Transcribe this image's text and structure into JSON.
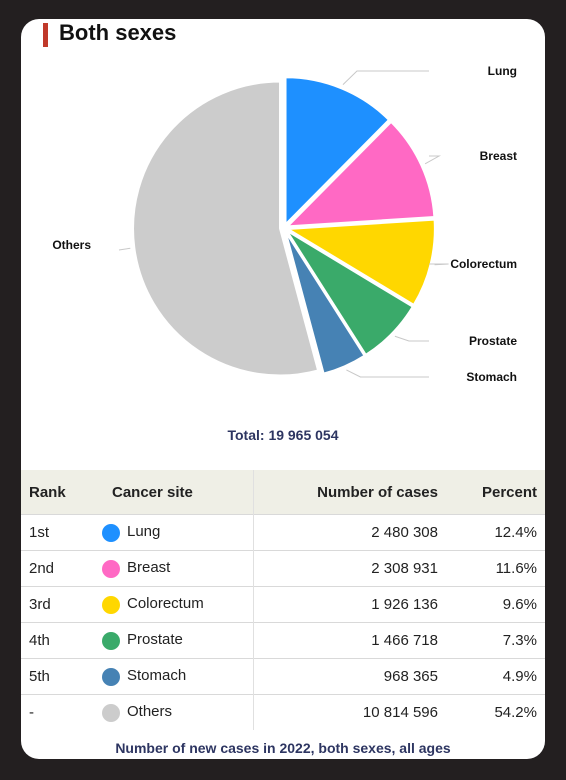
{
  "title": "Both sexes",
  "total_label": "Total: 19 965 054",
  "footer": "Number of new cases in 2022, both sexes, all ages",
  "table": {
    "headers": {
      "rank": "Rank",
      "site": "Cancer site",
      "cases": "Number of cases",
      "percent": "Percent"
    },
    "rows": [
      {
        "rank": "1st",
        "site": "Lung",
        "cases": "2 480 308",
        "percent": "12.4%",
        "color": "#1e90ff"
      },
      {
        "rank": "2nd",
        "site": "Breast",
        "cases": "2 308 931",
        "percent": "11.6%",
        "color": "#ff69c4"
      },
      {
        "rank": "3rd",
        "site": "Colorectum",
        "cases": "1 926 136",
        "percent": "9.6%",
        "color": "#ffd700"
      },
      {
        "rank": "4th",
        "site": "Prostate",
        "cases": "1 466 718",
        "percent": "7.3%",
        "color": "#3aaa6a"
      },
      {
        "rank": "5th",
        "site": "Stomach",
        "cases": "968 365",
        "percent": "4.9%",
        "color": "#4682b4"
      },
      {
        "rank": "-",
        "site": "Others",
        "cases": "10 814 596",
        "percent": "54.2%",
        "color": "#cccccc"
      }
    ]
  },
  "chart_data": {
    "type": "pie",
    "title": "Both sexes",
    "total": 19965054,
    "slices": [
      {
        "name": "Lung",
        "value": 2480308,
        "percent": 12.4,
        "color": "#1e90ff"
      },
      {
        "name": "Breast",
        "value": 2308931,
        "percent": 11.6,
        "color": "#ff69c4"
      },
      {
        "name": "Colorectum",
        "value": 1926136,
        "percent": 9.6,
        "color": "#ffd700"
      },
      {
        "name": "Prostate",
        "value": 1466718,
        "percent": 7.3,
        "color": "#3aaa6a"
      },
      {
        "name": "Stomach",
        "value": 968365,
        "percent": 4.9,
        "color": "#4682b4"
      },
      {
        "name": "Others",
        "value": 10814596,
        "percent": 54.2,
        "color": "#cccccc"
      }
    ]
  }
}
